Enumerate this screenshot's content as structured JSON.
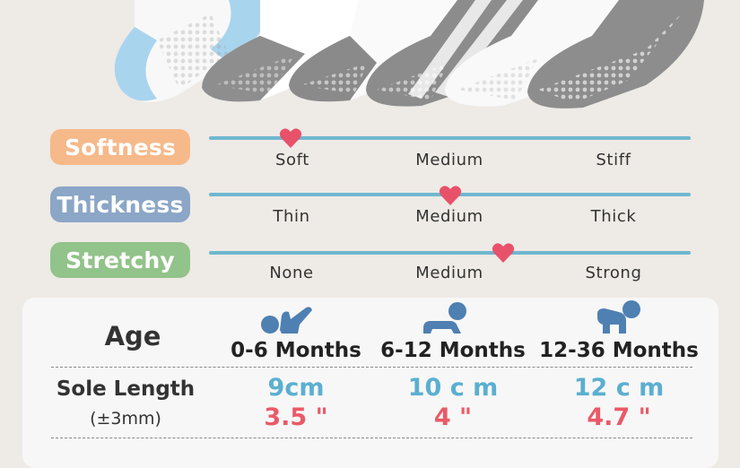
{
  "attributes": [
    {
      "label": "Softness",
      "color": "#f6b98a",
      "scale": [
        "Soft",
        "Medium",
        "Stiff"
      ],
      "level": 0.17
    },
    {
      "label": "Thickness",
      "color": "#8ba6c6",
      "scale": [
        "Thin",
        "Medium",
        "Thick"
      ],
      "level": 0.5
    },
    {
      "label": "Stretchy",
      "color": "#92c38a",
      "scale": [
        "None",
        "Medium",
        "Strong"
      ],
      "level": 0.61
    }
  ],
  "size_table": {
    "age_label": "Age",
    "sole_label": "Sole Length",
    "tolerance": "(±3mm)",
    "columns": [
      {
        "age": "0-6 Months",
        "cm": "9cm",
        "inch": "3.5 \"",
        "icon": "baby-lying-icon"
      },
      {
        "age": "6-12 Months",
        "cm": "10 c m",
        "inch": "4 \"",
        "icon": "baby-crawling-icon"
      },
      {
        "age": "12-36 Months",
        "cm": "12 c m",
        "inch": "4.7 \"",
        "icon": "baby-sitting-icon"
      }
    ]
  },
  "colors": {
    "heart": "#e8516a",
    "scale_line": "#6fb7cf",
    "cm_text": "#5bafd0",
    "inch_text": "#ea5a68",
    "icon": "#4e80b2"
  }
}
